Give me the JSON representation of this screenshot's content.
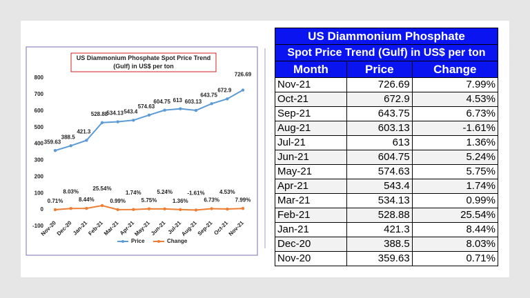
{
  "chart_data": {
    "type": "line",
    "title": "US Diammonium Phosphate Spot Price Trend (Gulf) in US$ per ton",
    "categories": [
      "Nov-20",
      "Dec-20",
      "Jan-21",
      "Feb-21",
      "Mar-21",
      "Apr-21",
      "May-21",
      "Jun-21",
      "Jul-21",
      "Aug-21",
      "Sep-21",
      "Oct-21",
      "Nov-21"
    ],
    "series": [
      {
        "name": "Price",
        "color": "#5b9bd5",
        "values": [
          359.63,
          388.5,
          421.3,
          528.88,
          534.13,
          543.4,
          574.63,
          604.75,
          613,
          603.13,
          643.75,
          672.9,
          726.69
        ]
      },
      {
        "name": "Change",
        "color": "#ed7d31",
        "values": [
          0.71,
          8.03,
          8.44,
          25.54,
          0.99,
          1.74,
          5.75,
          5.24,
          1.36,
          -1.61,
          6.73,
          4.53,
          7.99
        ],
        "value_labels": [
          "0.71%",
          "8.03%",
          "8.44%",
          "25.54%",
          "0.99%",
          "1.74%",
          "5.75%",
          "5.24%",
          "1.36%",
          "-1.61%",
          "6.73%",
          "4.53%",
          "7.99%"
        ]
      }
    ],
    "ylim": [
      -100,
      800
    ],
    "yticks": [
      -100,
      0,
      100,
      200,
      300,
      400,
      500,
      600,
      700,
      800
    ],
    "legend": "bottom"
  },
  "table": {
    "title": "US Diammonium Phosphate",
    "subtitle": "Spot Price Trend (Gulf) in US$ per ton",
    "columns": [
      "Month",
      "Price",
      "Change"
    ],
    "rows": [
      [
        "Nov-21",
        726.69,
        "7.99%"
      ],
      [
        "Oct-21",
        672.9,
        "4.53%"
      ],
      [
        "Sep-21",
        643.75,
        "6.73%"
      ],
      [
        "Aug-21",
        603.13,
        "-1.61%"
      ],
      [
        "Jul-21",
        613,
        "1.36%"
      ],
      [
        "Jun-21",
        604.75,
        "5.24%"
      ],
      [
        "May-21",
        574.63,
        "5.75%"
      ],
      [
        "Apr-21",
        543.4,
        "1.74%"
      ],
      [
        "Mar-21",
        534.13,
        "0.99%"
      ],
      [
        "Feb-21",
        528.88,
        "25.54%"
      ],
      [
        "Jan-21",
        421.3,
        "8.44%"
      ],
      [
        "Dec-20",
        388.5,
        "8.03%"
      ],
      [
        "Nov-20",
        359.63,
        "0.71%"
      ]
    ]
  }
}
